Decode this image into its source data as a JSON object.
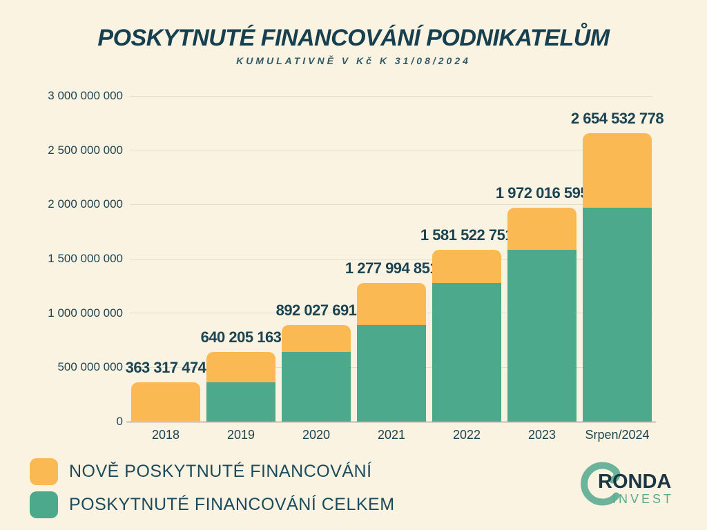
{
  "title": "POSKYTNUTÉ FINANCOVÁNÍ PODNIKATELŮM",
  "subtitle": "KUMULATIVNĚ V Kč K 31/08/2024",
  "colors": {
    "background": "#FBF3E2",
    "new_financing": "#FBB954",
    "total_financing": "#4DA98C",
    "text_dark": "#1B4453",
    "gridline": "#E2DCCB",
    "axis_line": "#D8D2C5",
    "logo_arc": "#6BB49B",
    "logo_name": "#1B3744",
    "logo_subname": "#56AB8F"
  },
  "chart_data": {
    "type": "bar",
    "stacked": true,
    "title": "POSKYTNUTÉ FINANCOVÁNÍ PODNIKATELŮM",
    "subtitle": "KUMULATIVNĚ V Kč K 31/08/2024",
    "categories": [
      "2018",
      "2019",
      "2020",
      "2021",
      "2022",
      "2023",
      "Srpen/2024"
    ],
    "cumulative_totals": [
      363317474,
      640205163,
      892027691,
      1277994851,
      1581522751,
      1972016595,
      2654532778
    ],
    "data_labels": [
      "363 317 474",
      "640 205 163",
      "892 027 691",
      "1 277 994 851",
      "1 581 522 751",
      "1 972 016 595",
      "2 654 532 778"
    ],
    "series": [
      {
        "name": "POSKYTNUTÉ FINANCOVÁNÍ CELKEM",
        "color": "#4DA98C",
        "values": [
          0,
          363317474,
          640205163,
          892027691,
          1277994851,
          1581522751,
          1972016595
        ]
      },
      {
        "name": "NOVĚ POSKYTNUTÉ FINANCOVÁNÍ",
        "color": "#FBB954",
        "values": [
          363317474,
          276887689,
          251822528,
          385967160,
          303527900,
          390493844,
          682516183
        ]
      }
    ],
    "ylim": [
      0,
      3000000000
    ],
    "ytick_values": [
      0,
      500000000,
      1000000000,
      1500000000,
      2000000000,
      2500000000,
      3000000000
    ],
    "ytick_labels": [
      "0",
      "500 000 000",
      "1 000 000 000",
      "1 500 000 000",
      "2 000 000 000",
      "2 500 000 000",
      "3 000 000 000"
    ],
    "grid": true,
    "legend_position": "bottom-left"
  },
  "legend": {
    "items": [
      {
        "label": "NOVĚ POSKYTNUTÉ FINANCOVÁNÍ",
        "color": "#FBB954"
      },
      {
        "label": "POSKYTNUTÉ FINANCOVÁNÍ CELKEM",
        "color": "#4DA98C"
      }
    ]
  },
  "logo": {
    "name": "RONDA",
    "subname": "INVEST"
  }
}
